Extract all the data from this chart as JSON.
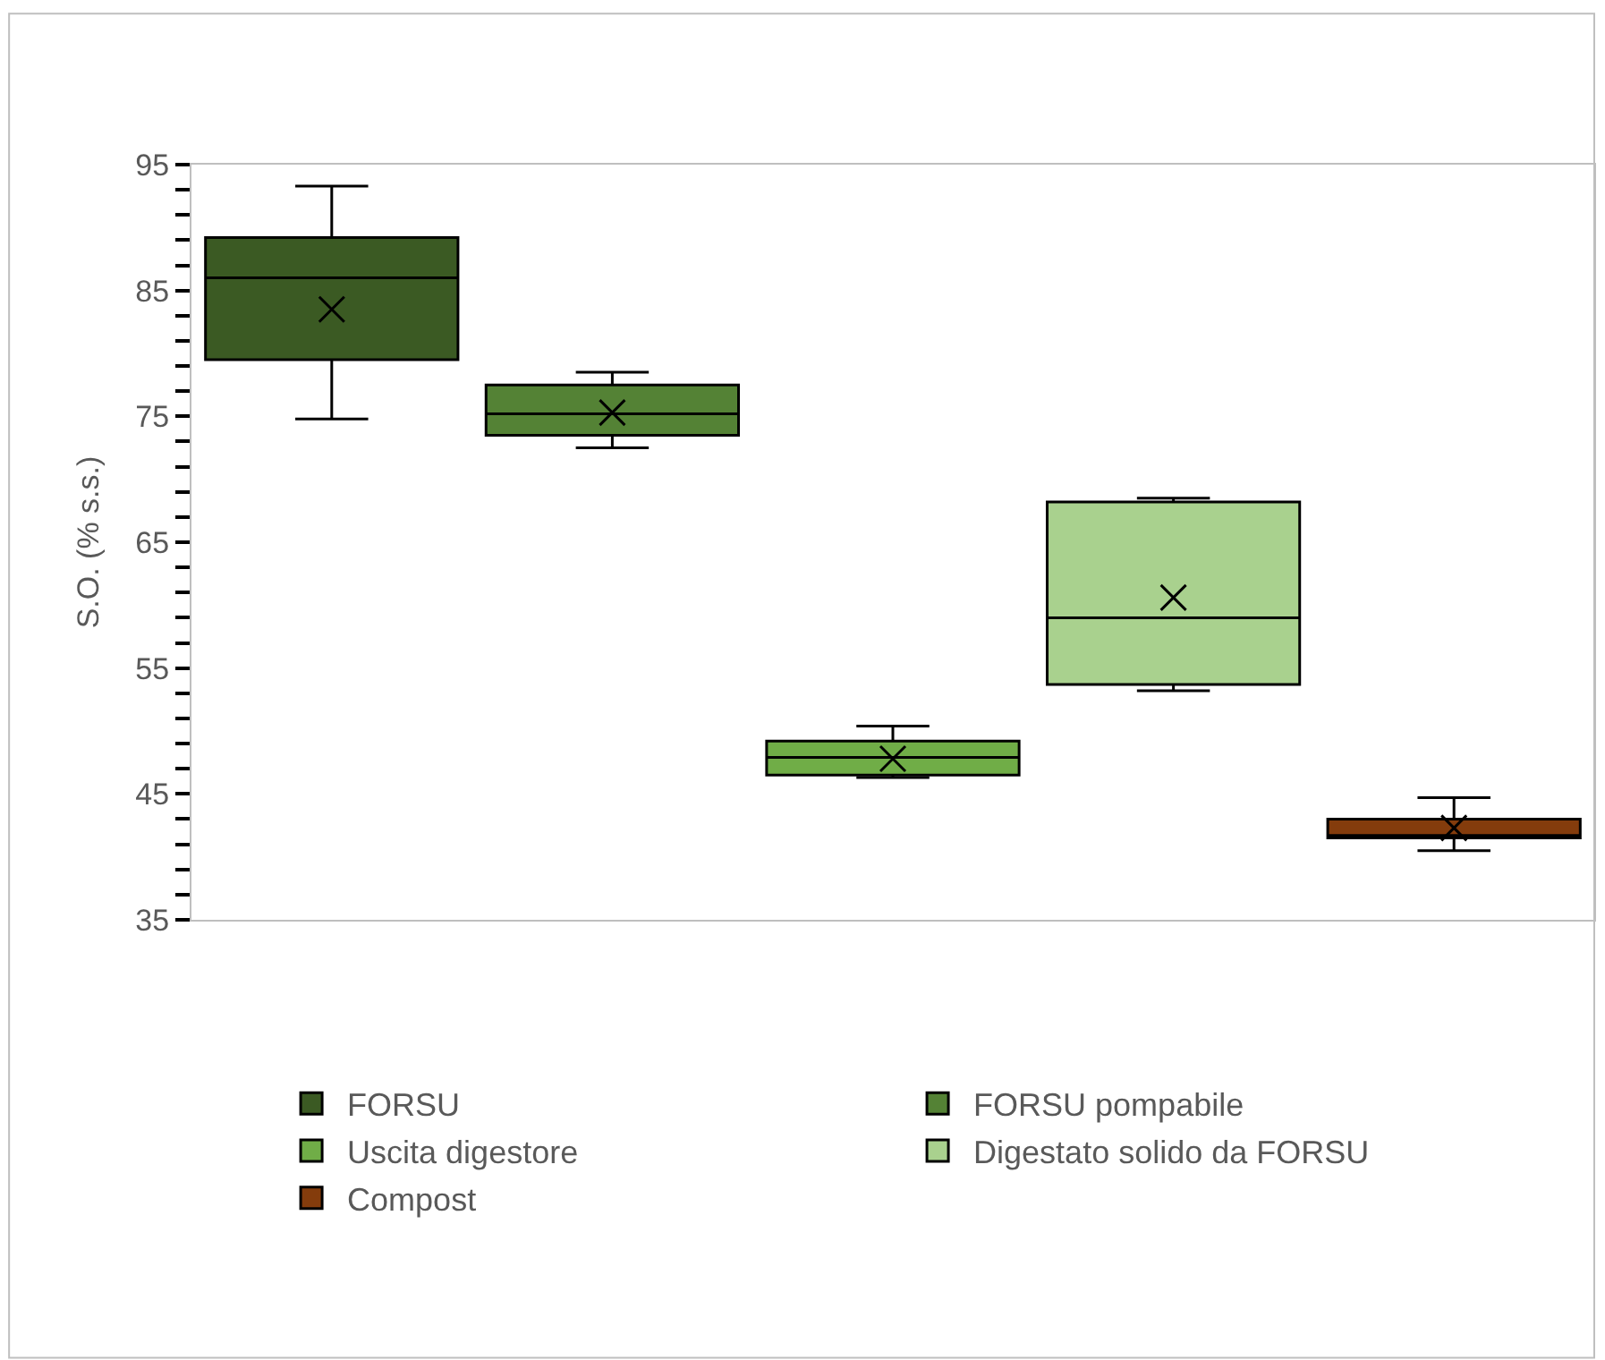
{
  "chart_data": {
    "type": "box",
    "ylabel": "S.O. (% s.s.)",
    "categories": [
      null,
      null,
      null,
      null,
      null
    ],
    "ylim": [
      35,
      95
    ],
    "yticks": [
      35,
      {
        "value": 37,
        "label": null
      },
      {
        "value": 39,
        "label": null
      },
      {
        "value": 41,
        "label": null
      },
      {
        "value": 43,
        "label": null
      },
      45,
      {
        "value": 47,
        "label": null
      },
      {
        "value": 49,
        "label": null
      },
      {
        "value": 51,
        "label": null
      },
      {
        "value": 53,
        "label": null
      },
      55,
      {
        "value": 57,
        "label": null
      },
      {
        "value": 59,
        "label": null
      },
      {
        "value": 61,
        "label": null
      },
      {
        "value": 63,
        "label": null
      },
      65,
      {
        "value": 67,
        "label": null
      },
      {
        "value": 69,
        "label": null
      },
      {
        "value": 71,
        "label": null
      },
      {
        "value": 73,
        "label": null
      },
      75,
      {
        "value": 77,
        "label": null
      },
      {
        "value": 79,
        "label": null
      },
      {
        "value": 81,
        "label": null
      },
      {
        "value": 83,
        "label": null
      },
      85,
      {
        "value": 87,
        "label": null
      },
      {
        "value": 89,
        "label": null
      },
      {
        "value": 91,
        "label": null
      },
      {
        "value": 93,
        "label": null
      },
      95
    ],
    "legend": "bottom",
    "tick_labels": "y",
    "series": [
      {
        "name": "FORSU",
        "color": "#3b5a23",
        "boxes": [
          {
            "low": 74.8,
            "q1": 79.5,
            "median": 86.0,
            "q3": 89.2,
            "high": 93.3,
            "mean": 83.5
          },
          null,
          null,
          null,
          null
        ]
      },
      {
        "name": "FORSU pompabile",
        "color": "#548235",
        "boxes": [
          null,
          {
            "low": 72.5,
            "q1": 73.5,
            "median": 75.2,
            "q3": 77.5,
            "high": 78.5,
            "mean": 75.3
          },
          null,
          null,
          null
        ]
      },
      {
        "name": "Uscita digestore",
        "color": "#70ad47",
        "boxes": [
          null,
          null,
          {
            "low": 46.3,
            "q1": 46.5,
            "median": 47.9,
            "q3": 49.2,
            "high": 50.4,
            "mean": 47.8
          },
          null,
          null
        ]
      },
      {
        "name": "Digestato solido da FORSU",
        "color": "#a9d18e",
        "boxes": [
          null,
          null,
          null,
          {
            "low": 53.2,
            "q1": 53.7,
            "median": 59.0,
            "q3": 68.2,
            "high": 68.5,
            "mean": 60.6
          },
          null
        ]
      },
      {
        "name": "Compost",
        "color": "#843c0c",
        "boxes": [
          null,
          null,
          null,
          null,
          {
            "low": 40.5,
            "q1": 41.5,
            "median": 41.7,
            "q3": 43.0,
            "high": 44.7,
            "mean": 42.3
          }
        ]
      }
    ]
  }
}
